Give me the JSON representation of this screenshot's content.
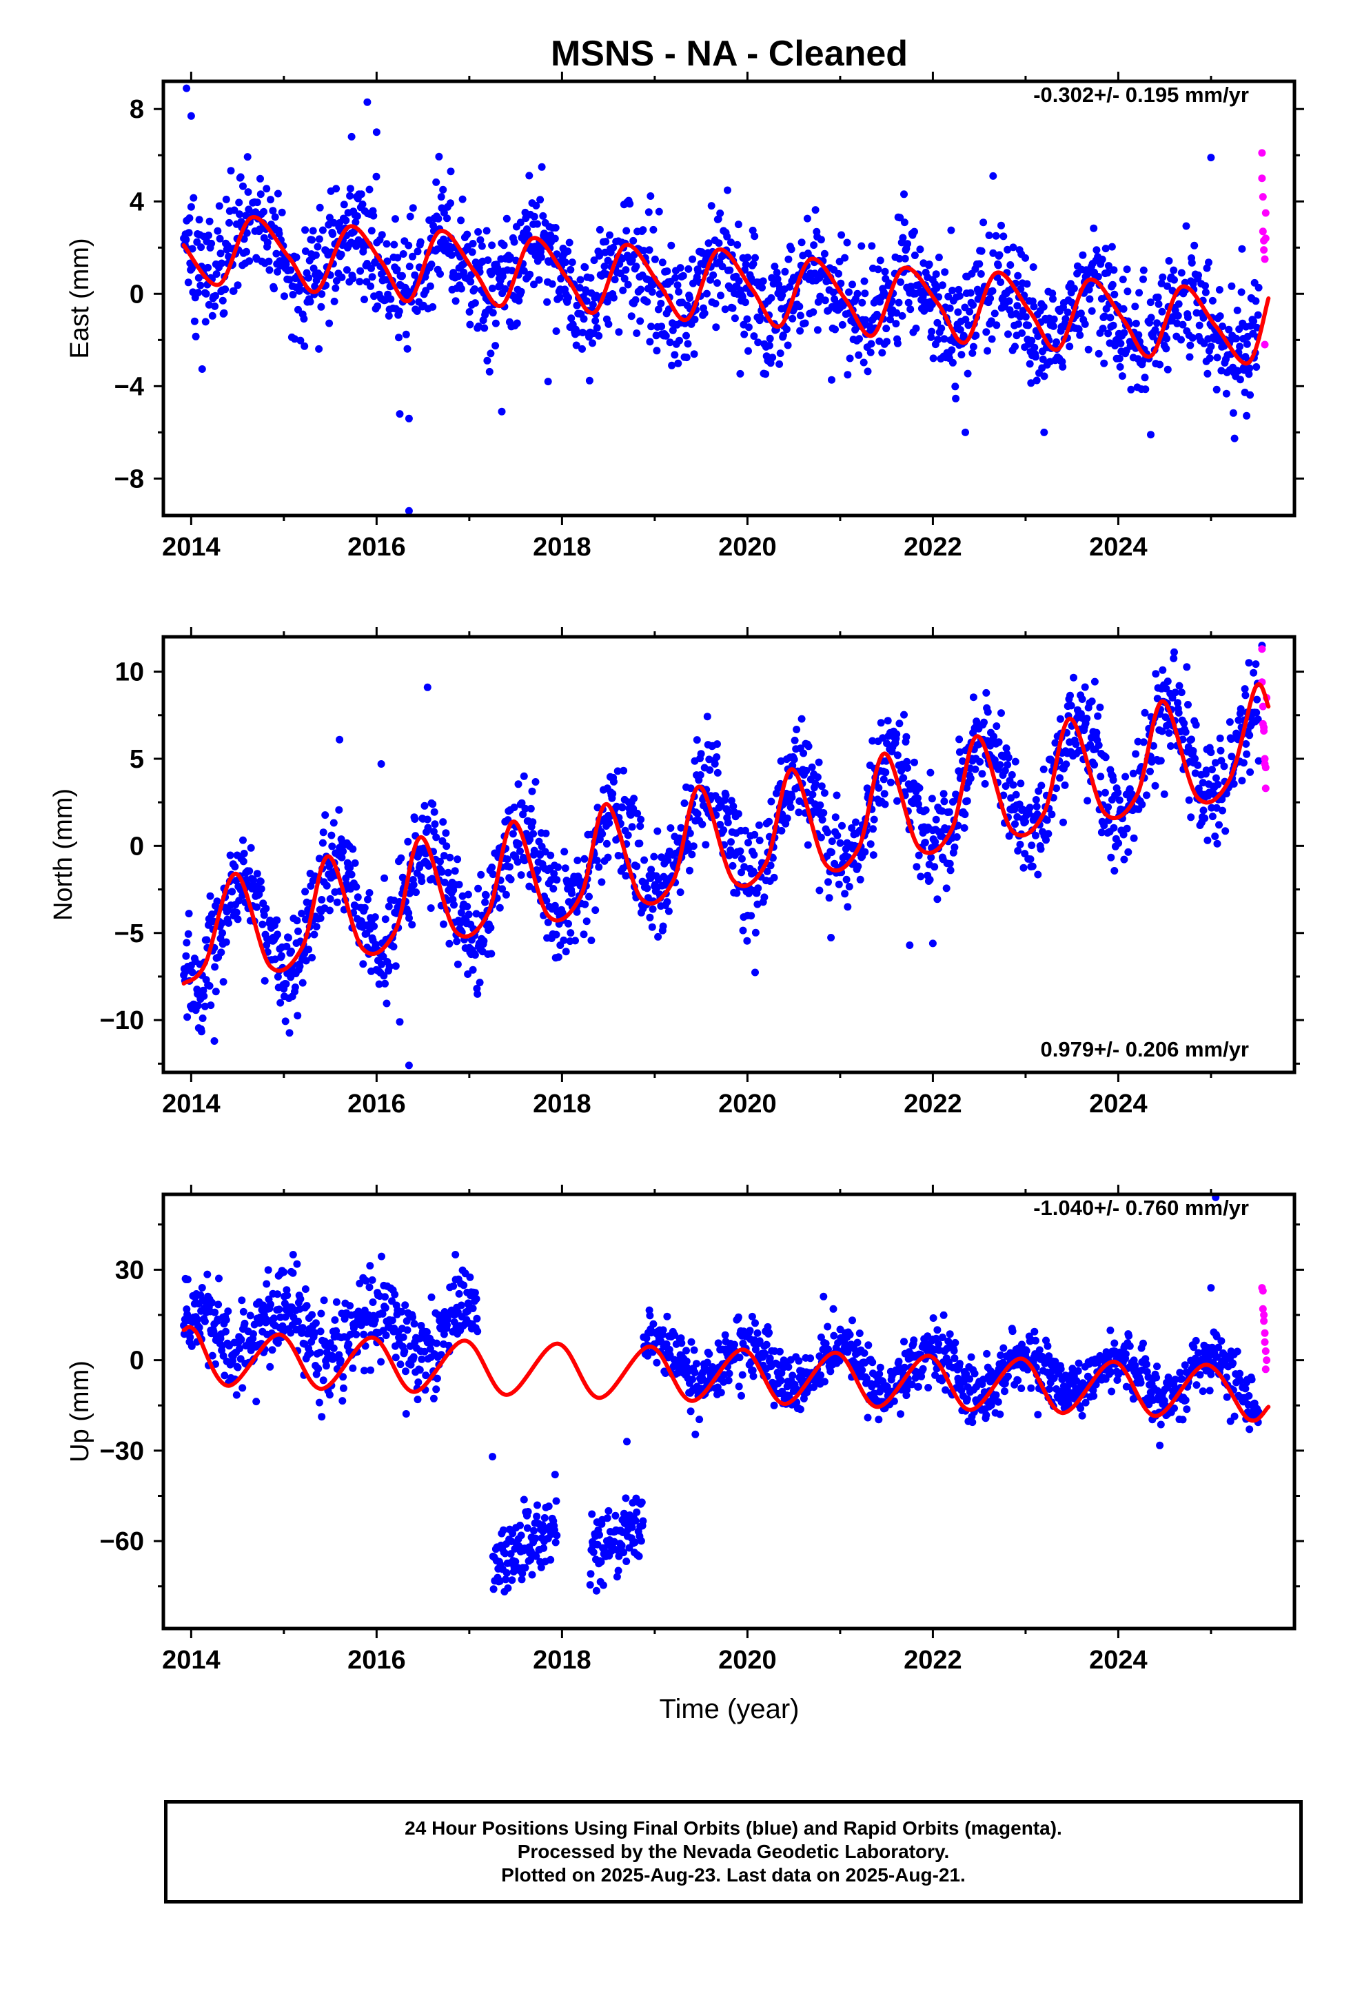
{
  "title": "MSNS  - NA - Cleaned",
  "xlabel": "Time (year)",
  "colors": {
    "final_orbits": "#0000ff",
    "rapid_orbits": "#ff00ff",
    "model": "#ff0000",
    "axes": "#000000"
  },
  "footer": {
    "line1": "24 Hour Positions Using Final Orbits (blue) and Rapid Orbits (magenta).",
    "line2": "Processed by the Nevada Geodetic Laboratory.",
    "line3": "Plotted on 2025-Aug-23. Last data on 2025-Aug-21."
  },
  "chart_data": [
    {
      "type": "scatter",
      "panel": "east",
      "ylabel": "East (mm)",
      "rate_label": "-0.302+/- 0.195 mm/yr",
      "xlim": [
        2013.7,
        2025.9
      ],
      "ylim": [
        -9.6,
        9.2
      ],
      "xticks": [
        2014,
        2016,
        2018,
        2020,
        2022,
        2024
      ],
      "yticks": [
        -8,
        -4,
        0,
        4,
        8
      ],
      "series": [
        {
          "marker": "dot",
          "color": "#0000ff",
          "trend": {
            "slope_mm_per_yr": -0.302,
            "value_at_2019_5": 0.35,
            "annual_amp": 1.2,
            "annual_peak": 2013.72,
            "noise": 1.3
          },
          "outliers": [
            [
              2013.95,
              8.9
            ],
            [
              2014.0,
              7.7
            ],
            [
              2015.73,
              6.8
            ],
            [
              2015.9,
              8.3
            ],
            [
              2016.0,
              7.0
            ],
            [
              2016.25,
              -5.2
            ],
            [
              2016.35,
              -5.4
            ],
            [
              2016.35,
              -9.4
            ],
            [
              2016.8,
              5.3
            ],
            [
              2017.35,
              -5.1
            ],
            [
              2017.85,
              -3.8
            ],
            [
              2022.35,
              -6.0
            ],
            [
              2022.65,
              5.1
            ],
            [
              2023.2,
              -6.0
            ],
            [
              2024.35,
              -6.1
            ],
            [
              2025.0,
              5.9
            ]
          ]
        },
        {
          "marker": "dot",
          "color": "#ff00ff",
          "points": [
            [
              2025.55,
              6.1
            ],
            [
              2025.55,
              5.0
            ],
            [
              2025.56,
              4.2
            ],
            [
              2025.56,
              2.7
            ],
            [
              2025.57,
              2.3
            ],
            [
              2025.57,
              1.9
            ],
            [
              2025.58,
              1.5
            ],
            [
              2025.58,
              -2.2
            ],
            [
              2025.59,
              3.5
            ],
            [
              2025.59,
              2.4
            ]
          ]
        },
        {
          "type": "line",
          "name": "model",
          "color": "#ff0000",
          "x": [
            2013.92,
            2014.3,
            2014.65,
            2015.05,
            2015.35,
            2015.7,
            2016.05,
            2016.35,
            2016.68,
            2017.05,
            2017.35,
            2017.68,
            2018.05,
            2018.35,
            2018.68,
            2019.05,
            2019.35,
            2019.68,
            2020.05,
            2020.35,
            2020.68,
            2021.05,
            2021.35,
            2021.68,
            2022.05,
            2022.35,
            2022.68,
            2023.05,
            2023.35,
            2023.68,
            2024.05,
            2024.35,
            2024.68,
            2025.05,
            2025.4,
            2025.62
          ],
          "y": [
            2.1,
            0.4,
            3.3,
            1.6,
            0.1,
            2.9,
            1.4,
            -0.3,
            2.7,
            1.0,
            -0.5,
            2.4,
            0.7,
            -0.8,
            2.1,
            0.4,
            -1.1,
            1.9,
            0.2,
            -1.4,
            1.5,
            -0.2,
            -1.8,
            1.1,
            -0.4,
            -2.1,
            0.9,
            -0.8,
            -2.4,
            0.6,
            -1.1,
            -2.7,
            0.3,
            -1.4,
            -3.0,
            -0.2
          ]
        }
      ]
    },
    {
      "type": "scatter",
      "panel": "north",
      "ylabel": "North (mm)",
      "rate_label": "0.979+/- 0.206 mm/yr",
      "xlim": [
        2013.7,
        2025.9
      ],
      "ylim": [
        -13.0,
        12.0
      ],
      "xticks": [
        2014,
        2016,
        2018,
        2020,
        2022,
        2024
      ],
      "yticks": [
        -10,
        -5,
        0,
        5,
        10
      ],
      "series": [
        {
          "marker": "dot",
          "color": "#0000ff",
          "trend": {
            "slope_mm_per_yr": 0.979,
            "value_at_2019_5": 0.2,
            "annual_amp": 2.8,
            "annual_peak": 2013.55,
            "noise": 1.5
          },
          "outliers": [
            [
              2014.25,
              -11.2
            ],
            [
              2015.6,
              6.1
            ],
            [
              2016.25,
              -10.1
            ],
            [
              2016.35,
              -12.6
            ],
            [
              2016.55,
              9.1
            ],
            [
              2016.05,
              4.7
            ],
            [
              2021.75,
              -5.7
            ],
            [
              2022.0,
              -5.6
            ],
            [
              2025.55,
              11.5
            ]
          ]
        },
        {
          "marker": "dot",
          "color": "#ff00ff",
          "points": [
            [
              2025.55,
              11.3
            ],
            [
              2025.55,
              9.4
            ],
            [
              2025.56,
              8.0
            ],
            [
              2025.56,
              7.0
            ],
            [
              2025.57,
              6.8
            ],
            [
              2025.57,
              6.6
            ],
            [
              2025.58,
              5.0
            ],
            [
              2025.58,
              4.7
            ],
            [
              2025.59,
              4.5
            ],
            [
              2025.59,
              3.3
            ],
            [
              2025.6,
              8.5
            ]
          ]
        },
        {
          "type": "line",
          "name": "model",
          "color": "#ff0000",
          "x": [
            2013.92,
            2014.15,
            2014.48,
            2014.85,
            2015.2,
            2015.48,
            2015.85,
            2016.2,
            2016.48,
            2016.85,
            2017.2,
            2017.48,
            2017.85,
            2018.2,
            2018.48,
            2018.85,
            2019.2,
            2019.48,
            2019.85,
            2020.2,
            2020.48,
            2020.85,
            2021.2,
            2021.48,
            2021.85,
            2022.2,
            2022.48,
            2022.85,
            2023.2,
            2023.48,
            2023.85,
            2024.2,
            2024.48,
            2024.85,
            2025.2,
            2025.48,
            2025.62
          ],
          "y": [
            -7.9,
            -6.8,
            -1.6,
            -6.9,
            -5.8,
            -0.6,
            -5.9,
            -4.9,
            0.5,
            -4.9,
            -3.9,
            1.4,
            -4.0,
            -2.9,
            2.4,
            -3.0,
            -2.0,
            3.4,
            -2.0,
            -1.0,
            4.4,
            -1.1,
            -0.1,
            5.3,
            -0.1,
            0.9,
            6.3,
            0.9,
            1.9,
            7.3,
            1.9,
            2.9,
            8.3,
            2.8,
            3.8,
            9.1,
            8.0
          ]
        }
      ]
    },
    {
      "type": "scatter",
      "panel": "up",
      "ylabel": "Up (mm)",
      "rate_label": "-1.040+/- 0.760 mm/yr",
      "xlim": [
        2013.7,
        2025.9
      ],
      "ylim": [
        -89,
        55
      ],
      "xticks": [
        2014,
        2016,
        2018,
        2020,
        2022,
        2024
      ],
      "yticks": [
        -60,
        -30,
        0,
        30
      ],
      "series": [
        {
          "marker": "dot",
          "color": "#0000ff",
          "trend": {
            "slope_mm_per_yr": -1.04,
            "value_at_2019_5": -1.0,
            "annual_amp": 7.0,
            "annual_peak": 2014.0,
            "noise": 5.0
          },
          "offset_segments": [
            [
              2013.92,
              2017.1,
              10.0
            ],
            [
              2017.25,
              2017.95,
              -68.0
            ],
            [
              2018.3,
              2018.88,
              -65.0
            ]
          ],
          "outliers": [
            [
              2015.1,
              35.0
            ],
            [
              2016.85,
              35.0
            ],
            [
              2017.25,
              -32.0
            ],
            [
              2018.7,
              -27.0
            ],
            [
              2025.05,
              54.0
            ],
            [
              2025.0,
              24.0
            ]
          ]
        },
        {
          "marker": "dot",
          "color": "#ff00ff",
          "points": [
            [
              2025.55,
              24.0
            ],
            [
              2025.56,
              23.0
            ],
            [
              2025.56,
              17.0
            ],
            [
              2025.57,
              15.0
            ],
            [
              2025.57,
              13.0
            ],
            [
              2025.58,
              9.0
            ],
            [
              2025.58,
              6.0
            ],
            [
              2025.59,
              3.0
            ],
            [
              2025.59,
              -3.0
            ],
            [
              2025.6,
              0.0
            ]
          ]
        },
        {
          "type": "line",
          "name": "model",
          "color": "#ff0000",
          "x": [
            2013.92,
            2014.05,
            2014.4,
            2014.95,
            2015.4,
            2015.95,
            2016.4,
            2016.95,
            2017.4,
            2017.95,
            2018.4,
            2018.95,
            2019.4,
            2019.95,
            2020.4,
            2020.95,
            2021.4,
            2021.95,
            2022.4,
            2022.95,
            2023.4,
            2023.95,
            2024.4,
            2024.95,
            2025.4,
            2025.62
          ],
          "y": [
            10.0,
            9.5,
            -8.5,
            8.5,
            -9.5,
            7.5,
            -10.5,
            6.5,
            -11.5,
            5.5,
            -12.5,
            4.5,
            -13.5,
            3.5,
            -14.5,
            2.5,
            -15.5,
            1.5,
            -16.5,
            0.5,
            -17.5,
            -0.5,
            -18.5,
            -1.5,
            -19.5,
            -15.5
          ]
        }
      ]
    }
  ]
}
